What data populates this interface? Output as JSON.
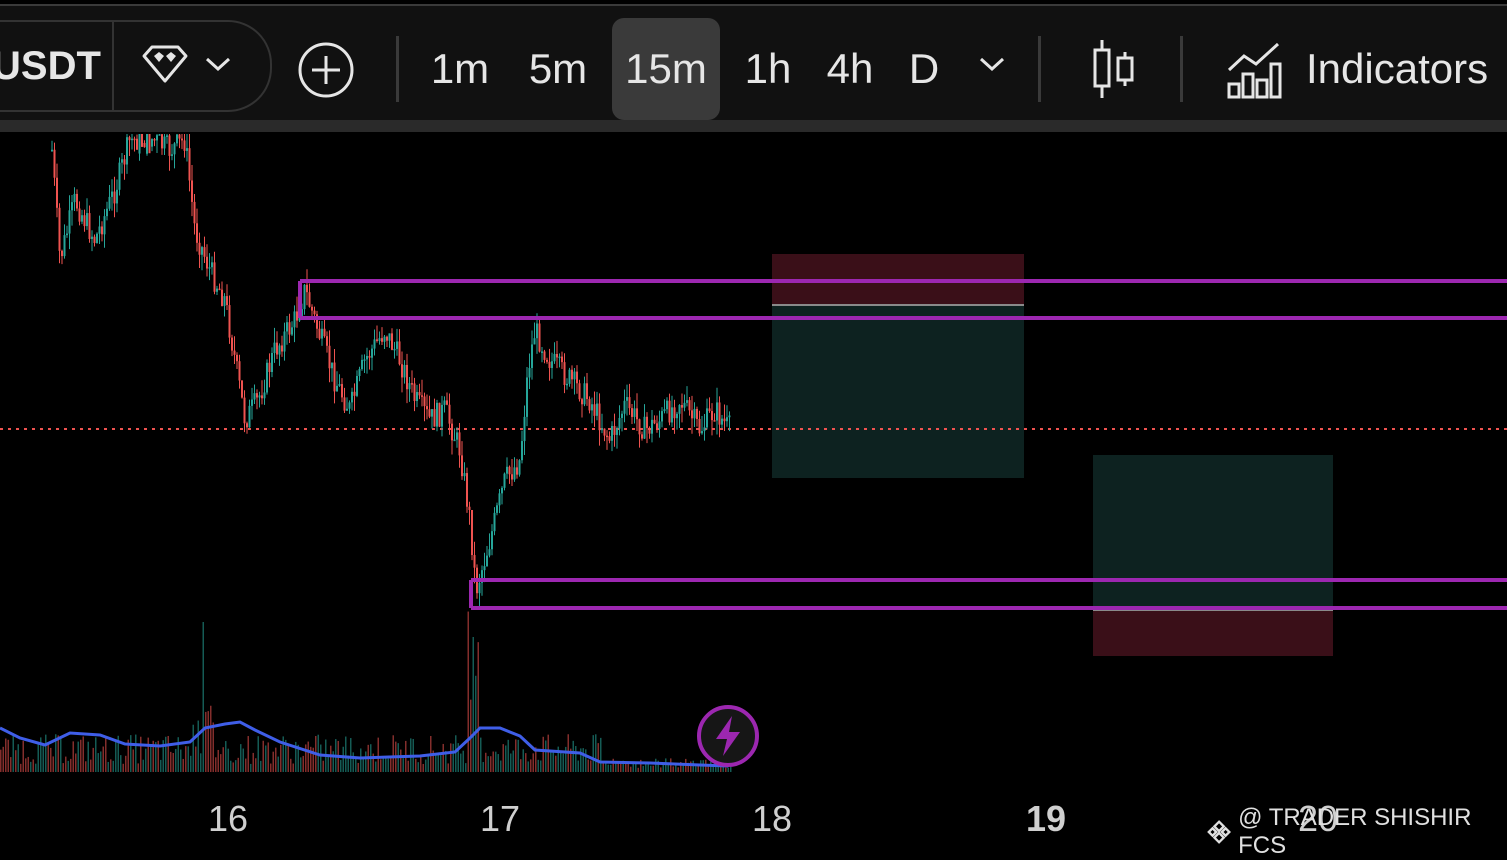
{
  "toolbar": {
    "symbol": "USDT",
    "timeframes": [
      "1m",
      "5m",
      "15m",
      "1h",
      "4h",
      "D"
    ],
    "active_timeframe": "15m",
    "indicators_label": "Indicators"
  },
  "chart": {
    "x_labels": [
      "16",
      "17",
      "18",
      "19",
      "20"
    ],
    "bold_label": "19",
    "colors": {
      "up": "#26a69a",
      "down": "#ef5350",
      "levels": "#9c27b0",
      "volume_ma": "#3f5ee8",
      "profit_zone": "#0d2220",
      "loss_zone": "#3a0f18",
      "price_line": "#ef5350"
    }
  },
  "watermark": {
    "text": "@ TRADER SHISHIR FCS"
  },
  "icons": [
    "diamond-icon",
    "chevron-down-icon",
    "plus-circle-icon",
    "chevron-down-icon",
    "candlestick-icon",
    "indicators-icon",
    "lightning-icon",
    "binance-logo-icon"
  ]
}
